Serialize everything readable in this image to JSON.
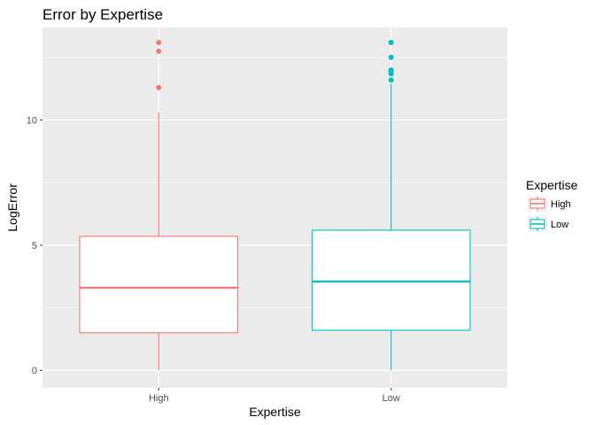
{
  "chart_data": {
    "type": "box",
    "title": "Error by Expertise",
    "xlabel": "Expertise",
    "ylabel": "LogError",
    "categories": [
      "High",
      "Low"
    ],
    "ylim": [
      -0.7,
      13.7
    ],
    "yticks": [
      0,
      5,
      10
    ],
    "grid": true,
    "legend": {
      "title": "Expertise",
      "placement": "right",
      "entries": [
        {
          "label": "High",
          "color": "#F8766D"
        },
        {
          "label": "Low",
          "color": "#00BFC4"
        }
      ]
    },
    "series": [
      {
        "category": "High",
        "color": "#F8766D",
        "min": 0,
        "q1": 1.5,
        "median": 3.3,
        "q3": 5.35,
        "max": 10.3,
        "outliers": [
          11.3,
          12.75,
          13.1
        ]
      },
      {
        "category": "Low",
        "color": "#00BFC4",
        "min": 0,
        "q1": 1.6,
        "median": 3.55,
        "q3": 5.6,
        "max": 11.45,
        "outliers": [
          11.6,
          11.85,
          11.95,
          12.0,
          12.5,
          13.1
        ]
      }
    ]
  }
}
